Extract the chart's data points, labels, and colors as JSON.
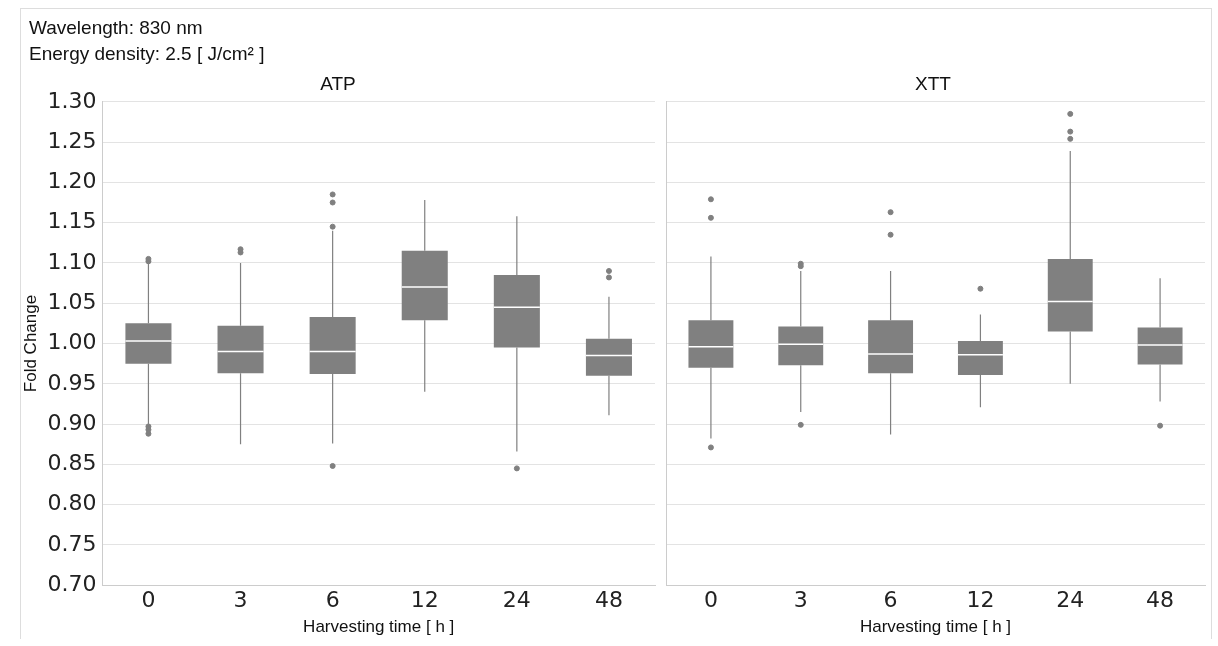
{
  "chart_data": [
    {
      "type": "box",
      "title": "ATP",
      "xlabel": "Harvesting time [ h ]",
      "ylabel": "Fold Change",
      "color": "#808080",
      "grid": true,
      "annotations": [
        "Wavelength: 830 nm",
        "Energy density: 2.5 [ J/cm² ]"
      ],
      "categories": [
        "0",
        "3",
        "6",
        "12",
        "24",
        "48"
      ],
      "ylim": [
        0.7,
        1.3
      ],
      "yticks": [
        {
          "value": 0.7,
          "label": "0.70"
        },
        {
          "value": 0.75,
          "label": "0.75"
        },
        {
          "value": 0.8,
          "label": "0.80"
        },
        {
          "value": 0.85,
          "label": "0.85"
        },
        {
          "value": 0.9,
          "label": "0.90"
        },
        {
          "value": 0.95,
          "label": "0.95"
        },
        {
          "value": 1,
          "label": "1.00"
        },
        {
          "value": 1.05,
          "label": "1.05"
        },
        {
          "value": 1.1,
          "label": "1.10"
        },
        {
          "value": 1.15,
          "label": "1.15"
        },
        {
          "value": 1.2,
          "label": "1.20"
        },
        {
          "value": 1.25,
          "label": "1.25"
        },
        {
          "value": 1.3,
          "label": "1.30"
        }
      ],
      "boxes": [
        {
          "low": 0.9,
          "q1": 0.975,
          "median": 1.003,
          "q3": 1.025,
          "high": 1.1,
          "outliers": [
            1.105,
            1.102,
            0.897,
            0.893,
            0.888
          ]
        },
        {
          "low": 0.875,
          "q1": 0.963,
          "median": 0.99,
          "q3": 1.022,
          "high": 1.1,
          "outliers": [
            1.113,
            1.117
          ]
        },
        {
          "low": 0.876,
          "q1": 0.962,
          "median": 0.99,
          "q3": 1.033,
          "high": 1.14,
          "outliers": [
            1.185,
            1.175,
            1.145,
            0.848
          ]
        },
        {
          "low": 0.94,
          "q1": 1.029,
          "median": 1.07,
          "q3": 1.115,
          "high": 1.178
        },
        {
          "low": 0.866,
          "q1": 0.995,
          "median": 1.045,
          "q3": 1.085,
          "high": 1.158,
          "outliers": [
            0.845
          ]
        },
        {
          "low": 0.911,
          "q1": 0.96,
          "median": 0.985,
          "q3": 1.006,
          "high": 1.058,
          "outliers": [
            1.09,
            1.082
          ]
        }
      ]
    },
    {
      "type": "box",
      "title": "XTT",
      "xlabel": "Harvesting time [ h ]",
      "color": "#808080",
      "grid": true,
      "tick_labels": "x",
      "categories": [
        "0",
        "3",
        "6",
        "12",
        "24",
        "48"
      ],
      "ylim": [
        0.7,
        1.3
      ],
      "yticks": [
        0.7,
        0.75,
        0.8,
        0.85,
        0.9,
        0.95,
        1,
        1.05,
        1.1,
        1.15,
        1.2,
        1.25,
        1.3
      ],
      "boxes": [
        {
          "low": 0.882,
          "q1": 0.97,
          "median": 0.996,
          "q3": 1.029,
          "high": 1.108,
          "outliers": [
            1.179,
            1.156,
            0.871
          ]
        },
        {
          "low": 0.915,
          "q1": 0.973,
          "median": 0.999,
          "q3": 1.021,
          "high": 1.09,
          "outliers": [
            1.099,
            1.096,
            0.899
          ]
        },
        {
          "low": 0.887,
          "q1": 0.963,
          "median": 0.987,
          "q3": 1.029,
          "high": 1.09,
          "outliers": [
            1.163,
            1.135
          ]
        },
        {
          "low": 0.921,
          "q1": 0.961,
          "median": 0.986,
          "q3": 1.003,
          "high": 1.036,
          "outliers": [
            1.068
          ]
        },
        {
          "low": 0.95,
          "q1": 1.015,
          "median": 1.052,
          "q3": 1.105,
          "high": 1.239,
          "outliers": [
            1.285,
            1.263,
            1.254
          ]
        },
        {
          "low": 0.928,
          "q1": 0.974,
          "median": 0.998,
          "q3": 1.02,
          "high": 1.081,
          "outliers": [
            0.898
          ]
        }
      ]
    }
  ]
}
